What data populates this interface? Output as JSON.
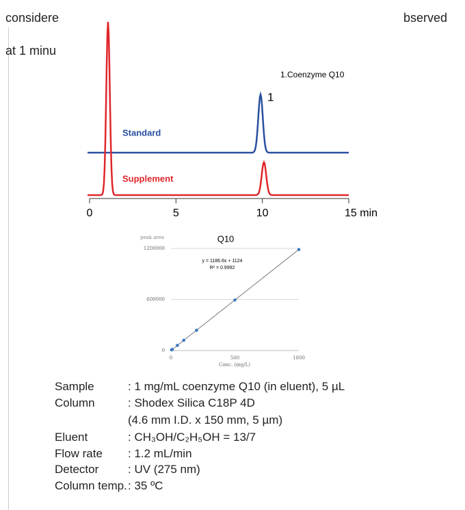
{
  "text_fragments": [
    "considere",
    "bserved",
    "at 1 minu"
  ],
  "chromatogram": {
    "peak_legend": "1.Coenzyme Q10",
    "peak_label": "1",
    "trace_labels": [
      "Standard",
      "Supplement"
    ],
    "trace_colors": [
      "#2a4fa0",
      "#e0262a"
    ],
    "xlim": [
      0,
      15
    ],
    "xticks": [
      0,
      5,
      10,
      {
        "value": 15,
        "label": "15 min"
      }
    ]
  },
  "calibration": {
    "title": "Q10",
    "y_label": "peak area",
    "x_label": "Conc. (mg/L)",
    "equation": "y = 1186.6x + 1124",
    "r_squared": "R² = 0.9992",
    "xlim": [
      0,
      1000
    ],
    "ylim": [
      0,
      1200000
    ],
    "xticks": [
      0,
      500,
      1000
    ],
    "yticks": [
      0,
      600000,
      1200000
    ],
    "x": [
      5,
      10,
      50,
      100,
      200,
      500,
      1000
    ],
    "y": [
      7000,
      13000,
      60000,
      120000,
      238000,
      594000,
      1188000
    ],
    "color": "#3a78c2"
  },
  "conditions": [
    [
      "Sample",
      ": 1 mg/mL coenzyme Q10 (in eluent), 5 µL"
    ],
    [
      "Column",
      ": Shodex Silica C18P 4D"
    ],
    [
      "",
      " (4.6 mm I.D. x 150 mm, 5 µm)"
    ],
    [
      "Eluent",
      ": CH₃OH/C₂H₅OH = 13/7"
    ],
    [
      "Flow rate",
      ": 1.2 mL/min"
    ],
    [
      "Detector",
      ": UV (275 nm)"
    ],
    [
      "Column temp.",
      ": 35 ºC"
    ]
  ]
}
